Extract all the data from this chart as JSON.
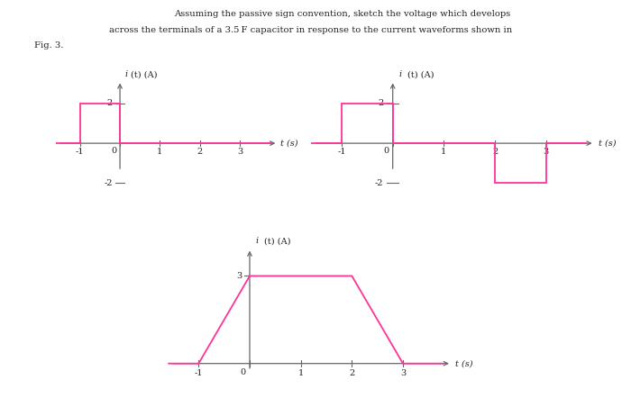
{
  "title_line1": "Assuming the passive sign convention, sketch the voltage which develops",
  "title_line2": "across the terminals of a 3.5 F capacitor in response to the current waveforms shown in",
  "title_line3": "Fig. 3.",
  "waveform_color": "#FF3399",
  "axis_color": "#666666",
  "text_color": "#222222",
  "bg_color": "#ffffff",
  "graph1": {
    "xlabel": "t (s)",
    "ylabel_italic": "i",
    "ylabel_normal": "(t) (A)",
    "xlim": [
      -1.6,
      4.0
    ],
    "ylim": [
      -2.8,
      3.2
    ],
    "xticks": [
      -1,
      0,
      1,
      2,
      3
    ],
    "yticks": [
      2,
      -2
    ],
    "tick_size": 0.12,
    "waveform_x": [
      -1.6,
      -1,
      -1,
      0,
      0,
      3.8
    ],
    "waveform_y": [
      0,
      0,
      2,
      2,
      0,
      0
    ]
  },
  "graph2": {
    "xlabel": "t (s)",
    "ylabel_italic": "i",
    "ylabel_normal": "(t) (A)",
    "xlim": [
      -1.6,
      4.0
    ],
    "ylim": [
      -2.8,
      3.2
    ],
    "xticks": [
      -1,
      0,
      1,
      2,
      3
    ],
    "yticks": [
      2,
      -2
    ],
    "tick_size": 0.12,
    "waveform_x": [
      -1.6,
      -1,
      -1,
      0,
      0,
      2,
      2,
      3,
      3,
      3.8
    ],
    "waveform_y": [
      0,
      0,
      2,
      2,
      0,
      0,
      -2,
      -2,
      0,
      0
    ]
  },
  "graph3": {
    "xlabel": "t (s)",
    "ylabel_italic": "i",
    "ylabel_normal": "(t) (A)",
    "xlim": [
      -1.6,
      4.0
    ],
    "ylim": [
      -0.5,
      4.0
    ],
    "xticks": [
      -1,
      0,
      1,
      2,
      3
    ],
    "yticks": [
      3
    ],
    "tick_size": 0.1,
    "waveform_x": [
      -1.6,
      -1,
      0,
      2,
      3,
      3.8
    ],
    "waveform_y": [
      0,
      0,
      3,
      3,
      0,
      0
    ]
  }
}
